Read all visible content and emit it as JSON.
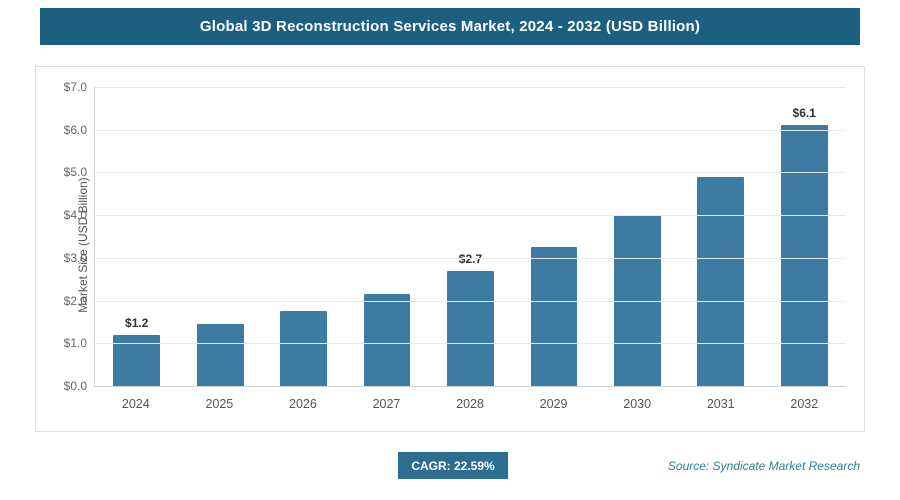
{
  "header": {
    "title": "Global 3D Reconstruction Services Market, 2024 - 2032 (USD Billion)"
  },
  "chart_data": {
    "type": "bar",
    "title": "Global 3D Reconstruction Services Market, 2024 - 2032 (USD Billion)",
    "categories": [
      "2024",
      "2025",
      "2026",
      "2027",
      "2028",
      "2029",
      "2030",
      "2031",
      "2032"
    ],
    "values": [
      1.2,
      1.45,
      1.75,
      2.15,
      2.7,
      3.25,
      4.0,
      4.9,
      6.1
    ],
    "point_labels": [
      "$1.2",
      "",
      "",
      "",
      "$2.7",
      "",
      "",
      "",
      "$6.1"
    ],
    "xlabel": "",
    "ylabel": "Market Size (USD Billion)",
    "ylim": [
      0,
      7
    ],
    "ytick_step": 1,
    "ytick_prefix": "$",
    "grid": true,
    "legend": "none",
    "bar_color": "#3e7ba3"
  },
  "footer": {
    "cagr_label": "CAGR: 22.59%",
    "source": "Source: Syndicate Market Research"
  }
}
